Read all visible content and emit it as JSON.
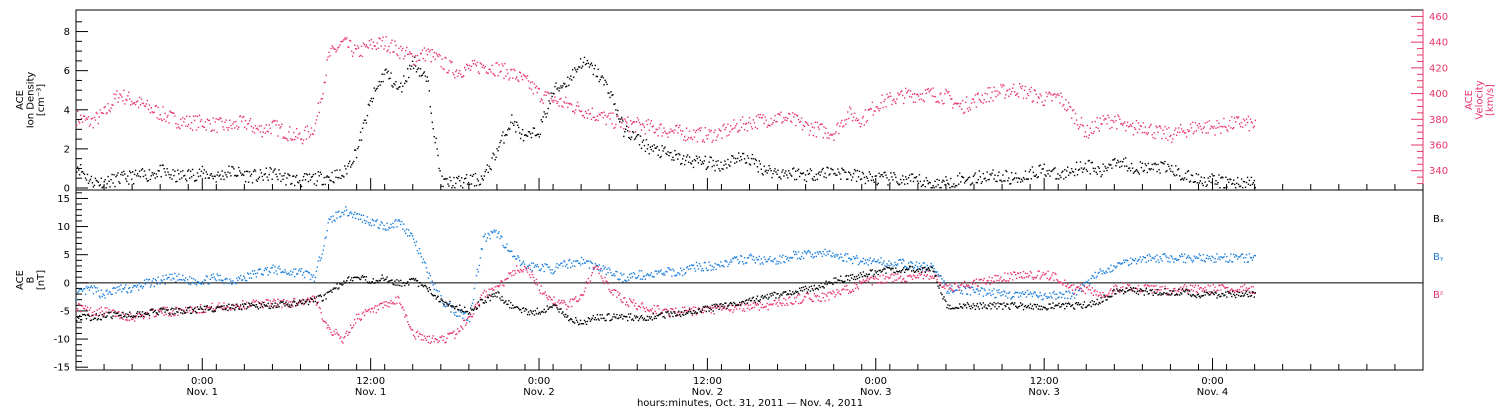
{
  "colors": {
    "black": "#000000",
    "blue": "#1e7fdc",
    "red": "#e8356a"
  },
  "x_axis": {
    "title": "hours:minutes, Oct. 31, 2011 — Nov.  4, 2011",
    "range_hours": [
      -9,
      87
    ],
    "ticks": [
      {
        "hours": 0,
        "time": "0:00",
        "date": "Nov. 1"
      },
      {
        "hours": 12,
        "time": "12:00",
        "date": "Nov. 1"
      },
      {
        "hours": 24,
        "time": "0:00",
        "date": "Nov. 2"
      },
      {
        "hours": 36,
        "time": "12:00",
        "date": "Nov. 2"
      },
      {
        "hours": 48,
        "time": "0:00",
        "date": "Nov. 3"
      },
      {
        "hours": 60,
        "time": "12:00",
        "date": "Nov. 3"
      },
      {
        "hours": 72,
        "time": "0:00",
        "date": "Nov. 4"
      }
    ]
  },
  "chart_data": [
    {
      "type": "scatter",
      "panel": "top",
      "ylabel_left": [
        "ACE",
        "Ion Density",
        "[cm⁻³]"
      ],
      "ylabel_right": [
        "ACE",
        "Velocity",
        "[km/s]"
      ],
      "ylim_left": [
        0,
        9
      ],
      "ylim_right": [
        325,
        465
      ],
      "yticks_left": [
        0,
        2,
        4,
        6,
        8
      ],
      "yticks_right": [
        340,
        360,
        380,
        400,
        420,
        440,
        460
      ],
      "series": [
        {
          "axis": "left",
          "color": "#000000",
          "x": [
            -9,
            -8,
            -7,
            -6,
            -5,
            -4,
            -3,
            -2,
            -1,
            0,
            1,
            2,
            3,
            4,
            5,
            6,
            7,
            8,
            9,
            10,
            11,
            12,
            13,
            14,
            15,
            16,
            17,
            18,
            19,
            20,
            21,
            22,
            23,
            24,
            25,
            26,
            27,
            28,
            29,
            30,
            31,
            32,
            33,
            34,
            35,
            36,
            37,
            38,
            39,
            40,
            41,
            42,
            43,
            44,
            45,
            46,
            47,
            48,
            49,
            50,
            51,
            52,
            53,
            54,
            55,
            56,
            57,
            58,
            59,
            60,
            61,
            62,
            63,
            64,
            65,
            66,
            67,
            68,
            69,
            70,
            71,
            72,
            73,
            74,
            75
          ],
          "y": [
            1.2,
            0.4,
            0.3,
            0.5,
            0.6,
            0.7,
            0.9,
            0.6,
            0.7,
            0.8,
            0.6,
            0.9,
            0.7,
            0.6,
            0.8,
            0.5,
            0.4,
            0.5,
            0.6,
            0.7,
            2.0,
            4.5,
            6.0,
            5.0,
            6.5,
            5.5,
            0.3,
            0.3,
            0.4,
            0.5,
            2.0,
            3.5,
            2.5,
            3.0,
            5.0,
            5.5,
            6.5,
            6.0,
            5.0,
            3.0,
            2.5,
            2.0,
            1.8,
            1.5,
            1.4,
            1.3,
            1.2,
            1.6,
            1.5,
            1.0,
            0.8,
            0.8,
            0.7,
            0.8,
            0.9,
            0.7,
            0.6,
            0.5,
            0.5,
            0.4,
            0.4,
            0.2,
            0.3,
            0.5,
            0.5,
            0.7,
            0.6,
            0.5,
            0.8,
            1.0,
            0.6,
            1.0,
            1.2,
            0.8,
            1.5,
            1.2,
            1.0,
            1.1,
            1.0,
            0.6,
            0.5,
            0.4,
            0.3,
            0.3,
            0.3
          ]
        },
        {
          "axis": "right",
          "color": "#e8356a",
          "x": [
            -9,
            -8,
            -7,
            -6,
            -5,
            -4,
            -3,
            -2,
            -1,
            0,
            1,
            2,
            3,
            4,
            5,
            6,
            7,
            8,
            9,
            10,
            11,
            12,
            13,
            14,
            15,
            16,
            17,
            18,
            19,
            20,
            21,
            22,
            23,
            24,
            25,
            26,
            27,
            28,
            29,
            30,
            31,
            32,
            33,
            34,
            35,
            36,
            37,
            38,
            39,
            40,
            41,
            42,
            43,
            44,
            45,
            46,
            47,
            48,
            49,
            50,
            51,
            52,
            53,
            54,
            55,
            56,
            57,
            58,
            59,
            60,
            61,
            62,
            63,
            64,
            65,
            66,
            67,
            68,
            69,
            70,
            71,
            72,
            73,
            74,
            75
          ],
          "y": [
            382,
            378,
            385,
            400,
            395,
            390,
            385,
            380,
            378,
            378,
            376,
            375,
            378,
            372,
            375,
            370,
            366,
            375,
            430,
            440,
            432,
            438,
            440,
            434,
            428,
            432,
            425,
            418,
            420,
            422,
            420,
            416,
            410,
            400,
            395,
            392,
            388,
            384,
            380,
            377,
            376,
            374,
            372,
            370,
            369,
            368,
            370,
            375,
            378,
            380,
            382,
            380,
            375,
            372,
            370,
            385,
            380,
            392,
            396,
            399,
            400,
            400,
            398,
            390,
            395,
            400,
            402,
            404,
            400,
            396,
            398,
            385,
            370,
            378,
            380,
            372,
            376,
            370,
            368,
            372,
            375,
            374,
            376,
            378,
            376
          ]
        }
      ]
    },
    {
      "type": "scatter",
      "panel": "bottom",
      "ylabel_left": [
        "ACE",
        "B",
        "[nT]"
      ],
      "ylim": [
        -15.5,
        16.5
      ],
      "yticks": [
        -15,
        -10,
        -5,
        0,
        5,
        10,
        15
      ],
      "zero_line": true,
      "series": [
        {
          "name": "Bₓ",
          "color": "#000000",
          "x": [
            -9,
            -8,
            -7,
            -6,
            -5,
            -4,
            -3,
            -2,
            -1,
            0,
            1,
            2,
            3,
            4,
            5,
            6,
            7,
            8,
            9,
            10,
            11,
            12,
            13,
            14,
            15,
            16,
            17,
            18,
            19,
            20,
            21,
            22,
            23,
            24,
            25,
            26,
            27,
            28,
            29,
            30,
            31,
            32,
            33,
            34,
            35,
            36,
            37,
            38,
            39,
            40,
            41,
            42,
            43,
            44,
            45,
            46,
            47,
            48,
            49,
            50,
            51,
            52,
            53,
            54,
            55,
            56,
            57,
            58,
            59,
            60,
            61,
            62,
            63,
            64,
            65,
            66,
            67,
            68,
            69,
            70,
            71,
            72,
            73,
            74,
            75
          ],
          "y": [
            -6,
            -6,
            -5.8,
            -5.5,
            -5.5,
            -5.2,
            -5,
            -5,
            -4.8,
            -4.5,
            -4.5,
            -4.2,
            -4,
            -4,
            -3.8,
            -3.8,
            -3.5,
            -3,
            -2,
            0.5,
            1,
            0.5,
            1,
            0,
            0.5,
            -1,
            -3,
            -4,
            -5,
            -3,
            -2,
            -4,
            -5,
            -5,
            -4,
            -6,
            -7,
            -6,
            -6,
            -6,
            -6,
            -6,
            -5.5,
            -5.5,
            -5,
            -4.5,
            -4,
            -3.5,
            -3,
            -2.5,
            -2,
            -1.5,
            -1,
            -0.5,
            0.5,
            1,
            1.5,
            2,
            2.5,
            2.5,
            2.5,
            2.5,
            -4,
            -4,
            -4,
            -4,
            -4,
            -4,
            -4.2,
            -4.2,
            -4,
            -4,
            -3.8,
            -3,
            -1.5,
            -1,
            -1.5,
            -1.5,
            -1.5,
            -1.5,
            -2,
            -2,
            -2,
            -2,
            -2
          ]
        },
        {
          "name": "Bᵧ",
          "color": "#1e7fdc",
          "x": [
            -9,
            -8,
            -7,
            -6,
            -5,
            -4,
            -3,
            -2,
            -1,
            0,
            1,
            2,
            3,
            4,
            5,
            6,
            7,
            8,
            9,
            10,
            11,
            12,
            13,
            14,
            15,
            16,
            17,
            18,
            19,
            20,
            21,
            22,
            23,
            24,
            25,
            26,
            27,
            28,
            29,
            30,
            31,
            32,
            33,
            34,
            35,
            36,
            37,
            38,
            39,
            40,
            41,
            42,
            43,
            44,
            45,
            46,
            47,
            48,
            49,
            50,
            51,
            52,
            53,
            54,
            55,
            56,
            57,
            58,
            59,
            60,
            61,
            62,
            63,
            64,
            65,
            66,
            67,
            68,
            69,
            70,
            71,
            72,
            73,
            74,
            75
          ],
          "y": [
            -2,
            -1,
            -2,
            -1,
            -1,
            0,
            0.5,
            1,
            0.5,
            0.5,
            1,
            0.5,
            1,
            2,
            2.5,
            2,
            2,
            1,
            11,
            13,
            12,
            11,
            10,
            11,
            8,
            2,
            -3,
            -5,
            -6,
            8,
            9,
            5,
            3,
            3,
            2.5,
            3.5,
            4,
            3,
            2,
            1,
            1.5,
            1.5,
            2,
            2,
            3,
            3,
            3.5,
            4,
            4.5,
            4,
            4,
            5,
            5,
            5.5,
            5,
            4.5,
            4,
            4,
            3.5,
            3.5,
            3,
            3,
            -1,
            -1,
            -1.5,
            -1.5,
            -2,
            -2,
            -2,
            -2.5,
            -2,
            -2,
            0,
            2,
            3,
            4,
            4.5,
            4.5,
            4.5,
            4.5,
            4.5,
            4.5,
            4.5,
            4.5,
            4.5
          ]
        },
        {
          "name": "Bᶻ",
          "color": "#e8356a",
          "x": [
            -9,
            -8,
            -7,
            -6,
            -5,
            -4,
            -3,
            -2,
            -1,
            0,
            1,
            2,
            3,
            4,
            5,
            6,
            7,
            8,
            9,
            10,
            11,
            12,
            13,
            14,
            15,
            16,
            17,
            18,
            19,
            20,
            21,
            22,
            23,
            24,
            25,
            26,
            27,
            28,
            29,
            30,
            31,
            32,
            33,
            34,
            35,
            36,
            37,
            38,
            39,
            40,
            41,
            42,
            43,
            44,
            45,
            46,
            47,
            48,
            49,
            50,
            51,
            52,
            53,
            54,
            55,
            56,
            57,
            58,
            59,
            60,
            61,
            62,
            63,
            64,
            65,
            66,
            67,
            68,
            69,
            70,
            71,
            72,
            73,
            74,
            75
          ],
          "y": [
            -4,
            -5,
            -5,
            -5.5,
            -6,
            -5.5,
            -5,
            -5,
            -4.5,
            -4.5,
            -4.2,
            -4,
            -3.8,
            -3.5,
            -3.5,
            -3.5,
            -3.2,
            -3,
            -8,
            -10,
            -6,
            -5,
            -4,
            -3,
            -9,
            -10,
            -10,
            -9,
            -6,
            -2,
            -1,
            2,
            3,
            -1,
            -3,
            -4,
            -2,
            3,
            -1,
            -3,
            -4,
            -4.5,
            -5,
            -5,
            -5,
            -4.8,
            -4.5,
            -4.5,
            -4,
            -4,
            -3.5,
            -3,
            -2.5,
            -2.5,
            -2,
            -1,
            0,
            0.5,
            1,
            1,
            1.5,
            1.5,
            -1,
            -0.5,
            0,
            0.5,
            1,
            1.5,
            1.5,
            1.5,
            1,
            -1,
            -1,
            -2,
            -1,
            -0.5,
            -1,
            -1,
            -1.5,
            -1,
            -1,
            -1,
            -1,
            -1,
            -1
          ]
        }
      ]
    }
  ]
}
